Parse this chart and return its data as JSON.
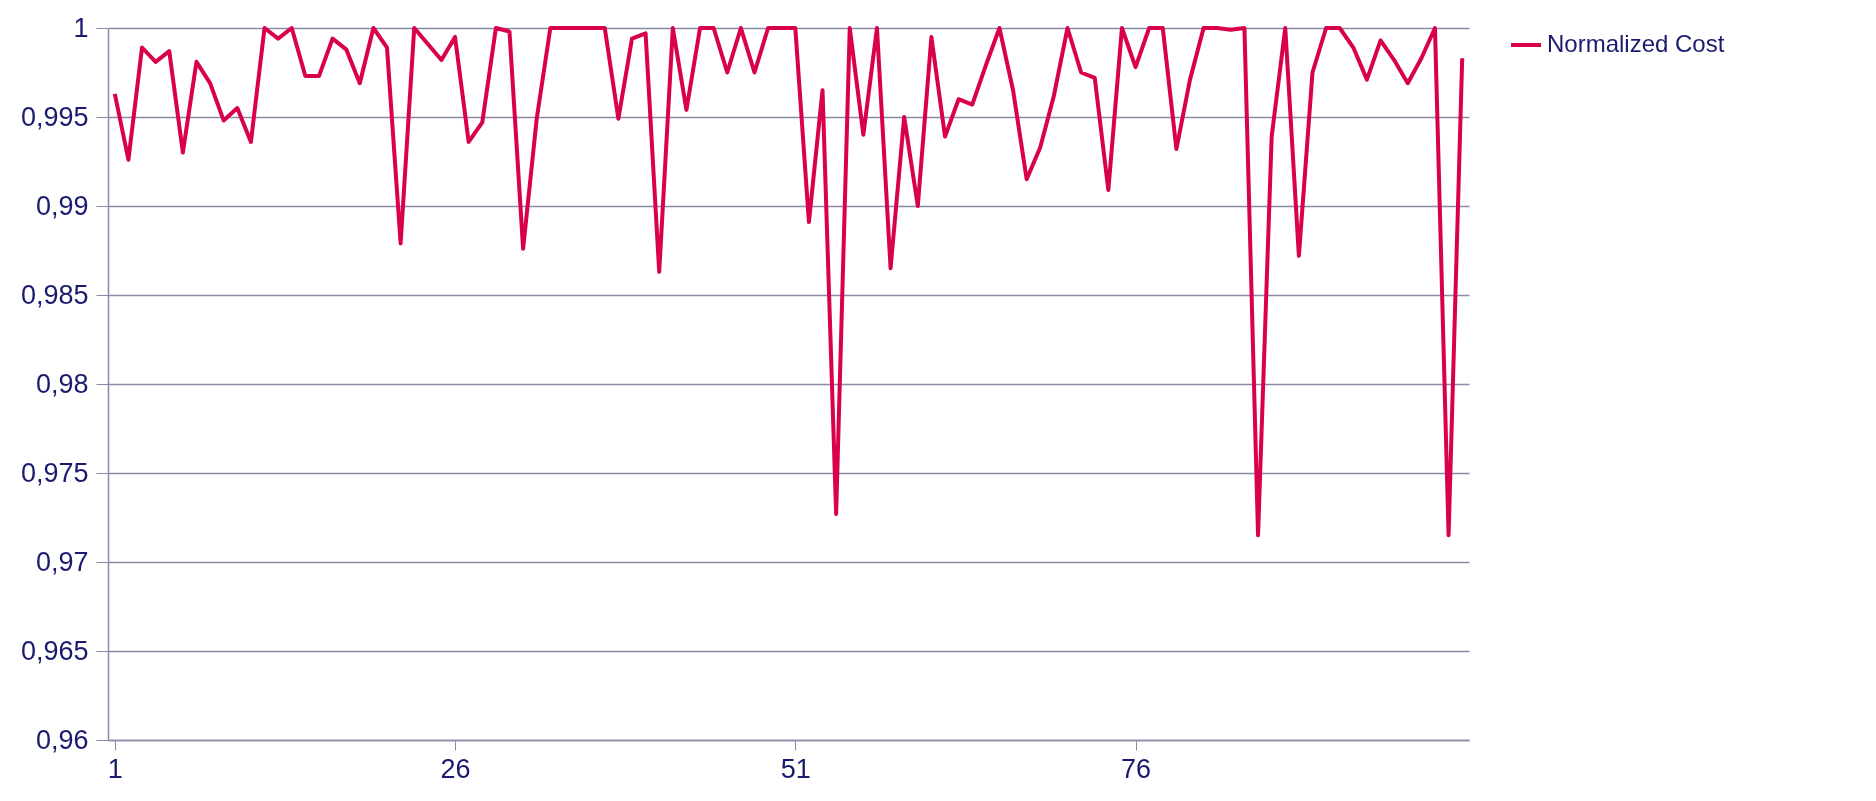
{
  "chart_data": {
    "type": "line",
    "x": [
      1,
      2,
      3,
      4,
      5,
      6,
      7,
      8,
      9,
      10,
      11,
      12,
      13,
      14,
      15,
      16,
      17,
      18,
      19,
      20,
      21,
      22,
      23,
      24,
      25,
      26,
      27,
      28,
      29,
      30,
      31,
      32,
      33,
      34,
      35,
      36,
      37,
      38,
      39,
      40,
      41,
      42,
      43,
      44,
      45,
      46,
      47,
      48,
      49,
      50,
      51,
      52,
      53,
      54,
      55,
      56,
      57,
      58,
      59,
      60,
      61,
      62,
      63,
      64,
      65,
      66,
      67,
      68,
      69,
      70,
      71,
      72,
      73,
      74,
      75,
      76,
      77,
      78,
      79,
      80,
      81,
      82,
      83,
      84,
      85,
      86,
      87,
      88,
      89,
      90,
      91,
      92,
      93,
      94,
      95,
      96,
      97,
      98,
      99,
      100
    ],
    "series": [
      {
        "name": "Normalized Cost",
        "color": "#d9004c",
        "values": [
          0.9963,
          0.9926,
          0.9989,
          0.9981,
          0.9987,
          0.993,
          0.9981,
          0.9969,
          0.9948,
          0.9955,
          0.9936,
          1,
          0.9994,
          1,
          0.9973,
          0.9973,
          0.9994,
          0.9988,
          0.9969,
          1,
          0.9989,
          0.9879,
          1,
          0.9991,
          0.9982,
          0.9995,
          0.9936,
          0.9947,
          1,
          0.9998,
          0.9876,
          0.9949,
          1,
          1,
          1,
          1,
          1,
          0.9949,
          0.9994,
          0.9997,
          0.9863,
          1,
          0.9954,
          1,
          1,
          0.9975,
          1,
          0.9975,
          1,
          1,
          1,
          0.9891,
          0.9965,
          0.9727,
          1,
          0.994,
          1,
          0.9865,
          0.995,
          0.99,
          0.9995,
          0.9939,
          0.996,
          0.9957,
          0.9979,
          1,
          0.9965,
          0.9915,
          0.9933,
          0.9962,
          1,
          0.9975,
          0.9972,
          0.9909,
          1,
          0.9978,
          1,
          1,
          0.9932,
          0.9971,
          1,
          1,
          0.9999,
          1,
          0.9715,
          0.9939,
          1,
          0.9872,
          0.9975,
          1,
          1,
          0.9989,
          0.9971,
          0.9993,
          0.9982,
          0.9969,
          0.9983,
          1,
          0.9715,
          0.9983
        ]
      }
    ],
    "xlim": [
      0.5,
      100.5
    ],
    "xticks": [
      1,
      26,
      51,
      76
    ],
    "ylim": [
      0.96,
      1
    ],
    "yticks": [
      {
        "value": 0.96,
        "label": "0,96"
      },
      {
        "value": 0.965,
        "label": "0,965"
      },
      {
        "value": 0.97,
        "label": "0,97"
      },
      {
        "value": 0.975,
        "label": "0,975"
      },
      {
        "value": 0.98,
        "label": "0,98"
      },
      {
        "value": 0.985,
        "label": "0,985"
      },
      {
        "value": 0.99,
        "label": "0,99"
      },
      {
        "value": 0.995,
        "label": "0,995"
      },
      {
        "value": 1,
        "label": "1"
      }
    ],
    "grid": "y",
    "legend": "top right"
  }
}
